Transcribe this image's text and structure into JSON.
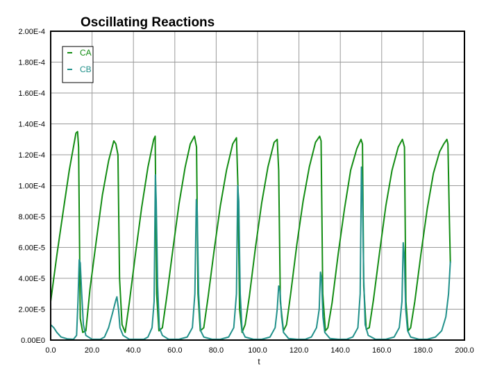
{
  "chart_data": {
    "type": "line",
    "title": "Oscillating Reactions",
    "xlabel": "t",
    "ylabel": "",
    "xlim": [
      0,
      200
    ],
    "ylim": [
      0,
      0.0002
    ],
    "x_ticks": [
      "0.0",
      "20.0",
      "40.0",
      "60.0",
      "80.0",
      "100.0",
      "120.0",
      "140.0",
      "160.0",
      "180.0",
      "200.0"
    ],
    "y_ticks": [
      "0.00E0",
      "2.00E-5",
      "4.00E-5",
      "6.00E-5",
      "8.00E-5",
      "1.00E-4",
      "1.20E-4",
      "1.40E-4",
      "1.60E-4",
      "1.80E-4",
      "2.00E-4"
    ],
    "grid": true,
    "legend": "top-left",
    "series": [
      {
        "name": "CA",
        "color": "#128c12",
        "points": [
          [
            0,
            2.5e-05
          ],
          [
            3,
            5.5e-05
          ],
          [
            6,
            8.3e-05
          ],
          [
            9,
            0.00011
          ],
          [
            12.2,
            0.000134
          ],
          [
            13,
            0.000135
          ],
          [
            13.5,
            0.000125
          ],
          [
            14.3,
            1.4e-05
          ],
          [
            15.5,
            5e-06
          ],
          [
            17,
            6e-06
          ],
          [
            19,
            3.3e-05
          ],
          [
            22,
            6.4e-05
          ],
          [
            25,
            9.4e-05
          ],
          [
            28,
            0.000116
          ],
          [
            30.5,
            0.000129
          ],
          [
            31.5,
            0.000127
          ],
          [
            32.5,
            0.00012
          ],
          [
            33.3,
            4e-05
          ],
          [
            34.5,
            1e-05
          ],
          [
            36,
            5e-06
          ],
          [
            38,
            2.4e-05
          ],
          [
            41,
            5.6e-05
          ],
          [
            44,
            8.6e-05
          ],
          [
            47,
            0.000112
          ],
          [
            49.8,
            0.00013
          ],
          [
            50.5,
            0.000132
          ],
          [
            51.2,
            3e-05
          ],
          [
            52.3,
            6e-06
          ],
          [
            54,
            8e-06
          ],
          [
            56,
            2.7e-05
          ],
          [
            59,
            5.8e-05
          ],
          [
            62,
            8.8e-05
          ],
          [
            65,
            0.000112
          ],
          [
            67.5,
            0.000127
          ],
          [
            69.5,
            0.000132
          ],
          [
            70.5,
            0.000125
          ],
          [
            71.2,
            3e-05
          ],
          [
            72.3,
            6e-06
          ],
          [
            74,
            8e-06
          ],
          [
            76,
            2.7e-05
          ],
          [
            79,
            5.8e-05
          ],
          [
            82,
            8.7e-05
          ],
          [
            85,
            0.00011
          ],
          [
            88,
            0.000127
          ],
          [
            89.8,
            0.000131
          ],
          [
            90.5,
            0.0001
          ],
          [
            91.3,
            2e-05
          ],
          [
            92.5,
            5e-06
          ],
          [
            94,
            1e-05
          ],
          [
            96,
            2.8e-05
          ],
          [
            99,
            6e-05
          ],
          [
            102,
            8.9e-05
          ],
          [
            105,
            0.000112
          ],
          [
            108,
            0.000128
          ],
          [
            109.5,
            0.00013
          ],
          [
            110.2,
            0.00011
          ],
          [
            111,
            2.5e-05
          ],
          [
            112.5,
            6e-06
          ],
          [
            114,
            1e-05
          ],
          [
            116,
            3e-05
          ],
          [
            119,
            6.2e-05
          ],
          [
            122,
            9e-05
          ],
          [
            125,
            0.000112
          ],
          [
            128,
            0.000128
          ],
          [
            130,
            0.000132
          ],
          [
            130.7,
            0.000129
          ],
          [
            131.5,
            3e-05
          ],
          [
            132.8,
            6e-06
          ],
          [
            134,
            8e-06
          ],
          [
            136,
            2.4e-05
          ],
          [
            139,
            5.6e-05
          ],
          [
            142,
            8.5e-05
          ],
          [
            145,
            0.00011
          ],
          [
            148,
            0.000124
          ],
          [
            150,
            0.00013
          ],
          [
            150.7,
            0.000127
          ],
          [
            151.3,
            3.5e-05
          ],
          [
            152.5,
            7e-06
          ],
          [
            154,
            8e-06
          ],
          [
            156,
            2.6e-05
          ],
          [
            159,
            5.7e-05
          ],
          [
            162,
            8.7e-05
          ],
          [
            165,
            0.00011
          ],
          [
            168,
            0.000125
          ],
          [
            170,
            0.00013
          ],
          [
            171,
            0.000125
          ],
          [
            171.7,
            2.5e-05
          ],
          [
            172.8,
            6e-06
          ],
          [
            174,
            8e-06
          ],
          [
            176,
            2.5e-05
          ],
          [
            179,
            5.6e-05
          ],
          [
            182,
            8.5e-05
          ],
          [
            185,
            0.000108
          ],
          [
            188,
            0.000122
          ],
          [
            190,
            0.000127
          ],
          [
            191.5,
            0.00013
          ],
          [
            192,
            0.000127
          ],
          [
            192.7,
            8e-05
          ],
          [
            193.2,
            5e-05
          ]
        ]
      },
      {
        "name": "CB",
        "color": "#20908a",
        "points": [
          [
            0,
            1e-05
          ],
          [
            1.5,
            8e-06
          ],
          [
            3,
            5e-06
          ],
          [
            5,
            2e-06
          ],
          [
            8,
            8e-07
          ],
          [
            11,
            5e-07
          ],
          [
            12.5,
            3e-06
          ],
          [
            13.2,
            2.5e-05
          ],
          [
            13.8,
            5.2e-05
          ],
          [
            14.3,
            5e-05
          ],
          [
            15,
            3e-05
          ],
          [
            15.8,
            1e-05
          ],
          [
            17,
            3e-06
          ],
          [
            20,
            5e-07
          ],
          [
            24,
            5e-07
          ],
          [
            26,
            2e-06
          ],
          [
            28,
            8e-06
          ],
          [
            30,
            1.8e-05
          ],
          [
            31.5,
            2.6e-05
          ],
          [
            32,
            2.8e-05
          ],
          [
            32.8,
            2e-05
          ],
          [
            33.5,
            8e-06
          ],
          [
            35,
            3e-06
          ],
          [
            38,
            5e-07
          ],
          [
            42,
            5e-07
          ],
          [
            45,
            5e-07
          ],
          [
            47,
            2e-06
          ],
          [
            49,
            8e-06
          ],
          [
            50,
            2.5e-05
          ],
          [
            50.6,
            0.000107
          ],
          [
            51,
            9e-05
          ],
          [
            51.7,
            3.5e-05
          ],
          [
            52.5,
            8e-06
          ],
          [
            54,
            3e-06
          ],
          [
            57,
            5e-07
          ],
          [
            62,
            5e-07
          ],
          [
            66,
            2e-06
          ],
          [
            68.5,
            8e-06
          ],
          [
            69.7,
            3e-05
          ],
          [
            70.4,
            9.1e-05
          ],
          [
            70.8,
            8.5e-05
          ],
          [
            71.5,
            3e-05
          ],
          [
            72.5,
            6e-06
          ],
          [
            74,
            2e-06
          ],
          [
            78,
            5e-07
          ],
          [
            82,
            5e-07
          ],
          [
            86,
            2e-06
          ],
          [
            88.5,
            8e-06
          ],
          [
            89.8,
            3e-05
          ],
          [
            90.4,
            0.0001
          ],
          [
            90.9,
            9e-05
          ],
          [
            91.6,
            3e-05
          ],
          [
            92.5,
            6e-06
          ],
          [
            94,
            2e-06
          ],
          [
            98,
            5e-07
          ],
          [
            102,
            5e-07
          ],
          [
            106,
            2e-06
          ],
          [
            108.5,
            8e-06
          ],
          [
            109.5,
            2e-05
          ],
          [
            110.2,
            3.5e-05
          ],
          [
            110.8,
            3.2e-05
          ],
          [
            111.6,
            1.5e-05
          ],
          [
            112.5,
            5e-06
          ],
          [
            115,
            1e-06
          ],
          [
            119,
            5e-07
          ],
          [
            123,
            5e-07
          ],
          [
            126,
            2e-06
          ],
          [
            128.5,
            8e-06
          ],
          [
            129.8,
            2e-05
          ],
          [
            130.4,
            4.4e-05
          ],
          [
            130.9,
            4e-05
          ],
          [
            131.6,
            1.5e-05
          ],
          [
            132.5,
            5e-06
          ],
          [
            135,
            1e-06
          ],
          [
            139,
            5e-07
          ],
          [
            143,
            5e-07
          ],
          [
            146,
            2e-06
          ],
          [
            148.5,
            8e-06
          ],
          [
            149.6,
            3e-05
          ],
          [
            150.2,
            0.000112
          ],
          [
            150.6,
            0.0001
          ],
          [
            151.3,
            4e-05
          ],
          [
            152,
            1e-05
          ],
          [
            153.5,
            3e-06
          ],
          [
            157,
            5e-07
          ],
          [
            162,
            5e-07
          ],
          [
            166,
            2e-06
          ],
          [
            168.5,
            8e-06
          ],
          [
            169.8,
            2.5e-05
          ],
          [
            170.4,
            6.3e-05
          ],
          [
            170.9,
            5.5e-05
          ],
          [
            171.6,
            2e-05
          ],
          [
            172.5,
            6e-06
          ],
          [
            174,
            2e-06
          ],
          [
            178,
            5e-07
          ],
          [
            182,
            5e-07
          ],
          [
            186,
            2e-06
          ],
          [
            189,
            6e-06
          ],
          [
            191,
            1.5e-05
          ],
          [
            192.3,
            3e-05
          ],
          [
            193.2,
            5.1e-05
          ]
        ]
      }
    ]
  }
}
